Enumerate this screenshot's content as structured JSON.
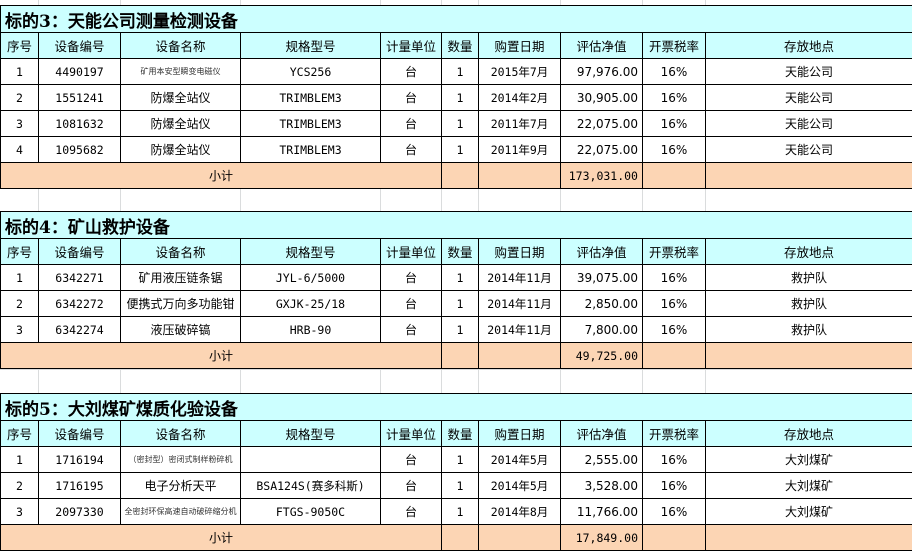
{
  "headers": [
    "序号",
    "设备编号",
    "设备名称",
    "规格型号",
    "计量单位",
    "数量",
    "购置日期",
    "评估净值",
    "开票税率",
    "存放地点"
  ],
  "subtotal_label": "小计",
  "colors": {
    "header_bg": "#ccffff",
    "subtotal_bg": "#fcd5b4"
  },
  "sections": [
    {
      "title": "标的3：天能公司测量检测设备",
      "subtotal": "173,031.00",
      "rows": [
        [
          "1",
          "4490197",
          "矿用本安型瞬变电磁仪",
          "YCS256",
          "台",
          "1",
          "2015年7月",
          "97,976.00",
          "16%",
          "天能公司"
        ],
        [
          "2",
          "1551241",
          "防爆全站仪",
          "TRIMBLEM3",
          "台",
          "1",
          "2014年2月",
          "30,905.00",
          "16%",
          "天能公司"
        ],
        [
          "3",
          "1081632",
          "防爆全站仪",
          "TRIMBLEM3",
          "台",
          "1",
          "2011年7月",
          "22,075.00",
          "16%",
          "天能公司"
        ],
        [
          "4",
          "1095682",
          "防爆全站仪",
          "TRIMBLEM3",
          "台",
          "1",
          "2011年9月",
          "22,075.00",
          "16%",
          "天能公司"
        ]
      ]
    },
    {
      "title": "标的4：矿山救护设备",
      "subtotal": "49,725.00",
      "rows": [
        [
          "1",
          "6342271",
          "矿用液压链条锯",
          "JYL-6/5000",
          "台",
          "1",
          "2014年11月",
          "39,075.00",
          "16%",
          "救护队"
        ],
        [
          "2",
          "6342272",
          "便携式万向多功能钳",
          "GXJK-25/18",
          "台",
          "1",
          "2014年11月",
          "2,850.00",
          "16%",
          "救护队"
        ],
        [
          "3",
          "6342274",
          "液压破碎镐",
          "HRB-90",
          "台",
          "1",
          "2014年11月",
          "7,800.00",
          "16%",
          "救护队"
        ]
      ]
    },
    {
      "title": "标的5：大刘煤矿煤质化验设备",
      "subtotal": "17,849.00",
      "rows": [
        [
          "1",
          "1716194",
          "（密封型）密闭式制样粉碎机",
          "",
          "台",
          "1",
          "2014年5月",
          "2,555.00",
          "16%",
          "大刘煤矿"
        ],
        [
          "2",
          "1716195",
          "电子分析天平",
          "BSA124S(赛多科斯)",
          "台",
          "1",
          "2014年5月",
          "3,528.00",
          "16%",
          "大刘煤矿"
        ],
        [
          "3",
          "2097330",
          "全密封环保高速自动破碎缩分机",
          "FTGS-9050C",
          "台",
          "1",
          "2014年8月",
          "11,766.00",
          "16%",
          "大刘煤矿"
        ]
      ]
    }
  ]
}
